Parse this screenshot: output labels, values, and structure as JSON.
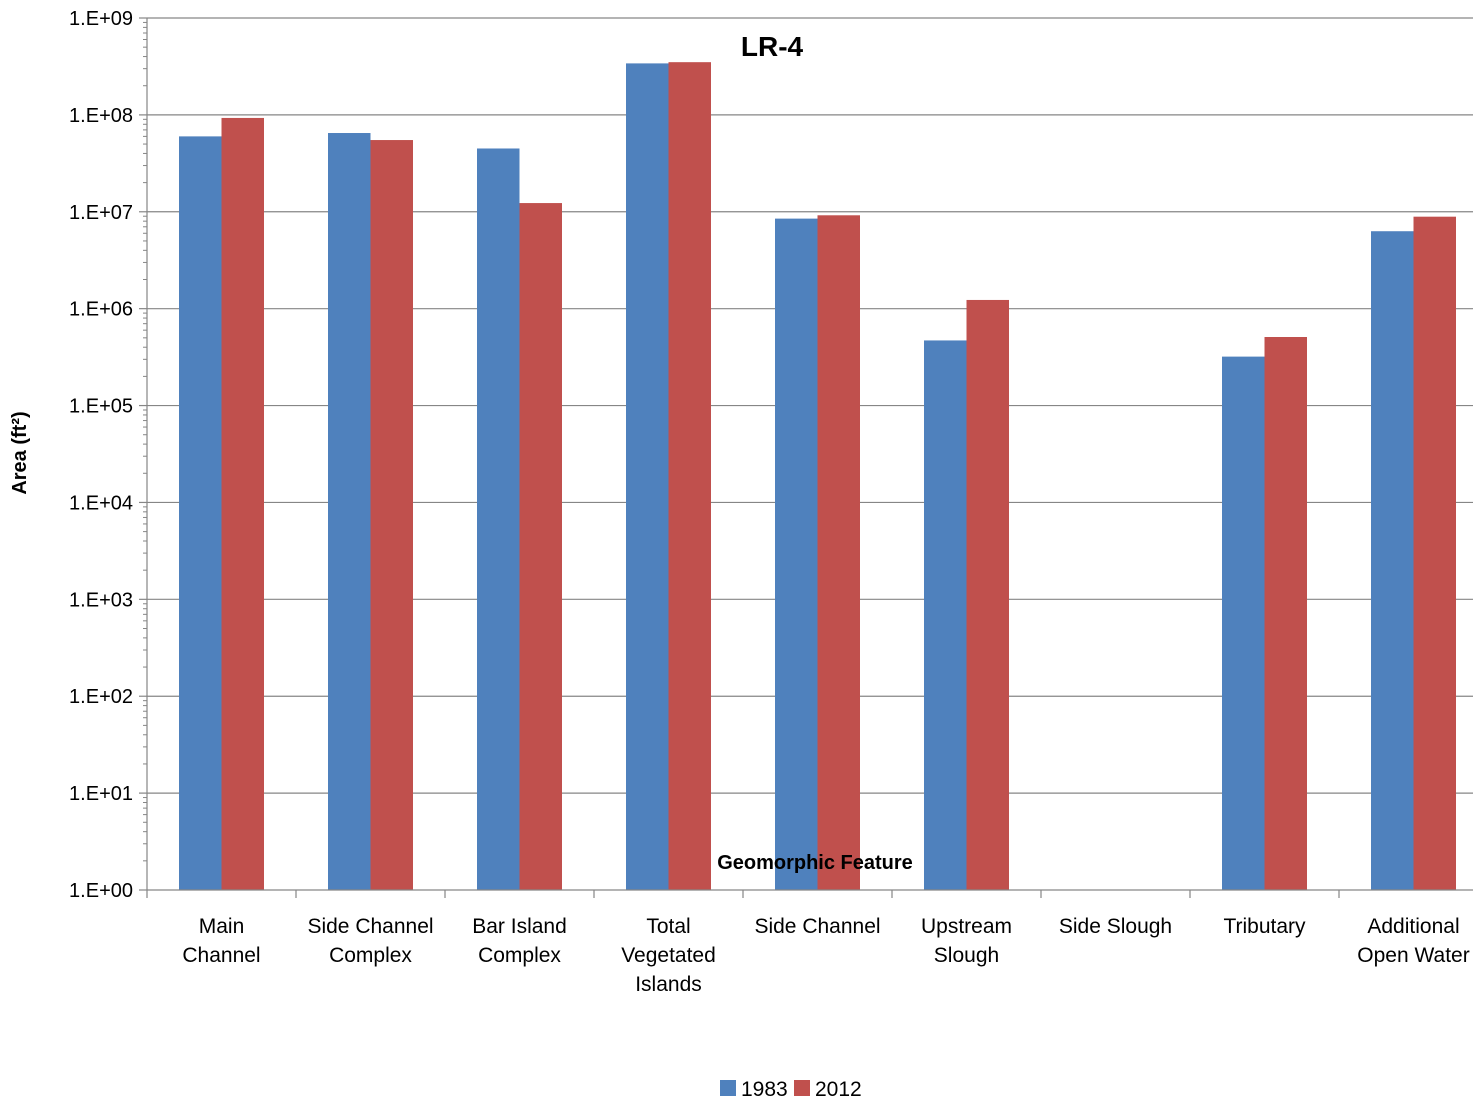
{
  "chart_data": {
    "type": "bar",
    "title": "LR-4",
    "xlabel": "Geomorphic Feature",
    "ylabel": "Area (ft²)",
    "yscale": "log",
    "ylim": [
      1,
      1000000000
    ],
    "yticks": [
      "1.E+00",
      "1.E+01",
      "1.E+02",
      "1.E+03",
      "1.E+04",
      "1.E+05",
      "1.E+06",
      "1.E+07",
      "1.E+08",
      "1.E+09"
    ],
    "grid": true,
    "legend_position": "bottom",
    "categories": [
      [
        "Main",
        "Channel"
      ],
      [
        "Side Channel",
        "Complex"
      ],
      [
        "Bar Island",
        "Complex"
      ],
      [
        "Total",
        "Vegetated",
        "Islands"
      ],
      [
        "Side Channel"
      ],
      [
        "Upstream",
        "Slough"
      ],
      [
        "Side Slough"
      ],
      [
        "Tributary"
      ],
      [
        "Additional",
        "Open Water"
      ]
    ],
    "series": [
      {
        "name": "1983",
        "color": "#4F81BD",
        "values": [
          60000000,
          65000000,
          45000000,
          340000000,
          8500000,
          470000,
          null,
          320000,
          6300000
        ]
      },
      {
        "name": "2012",
        "color": "#C0504D",
        "values": [
          93000000,
          55000000,
          12300000,
          350000000,
          9200000,
          1230000,
          null,
          510000,
          8900000
        ]
      }
    ]
  }
}
